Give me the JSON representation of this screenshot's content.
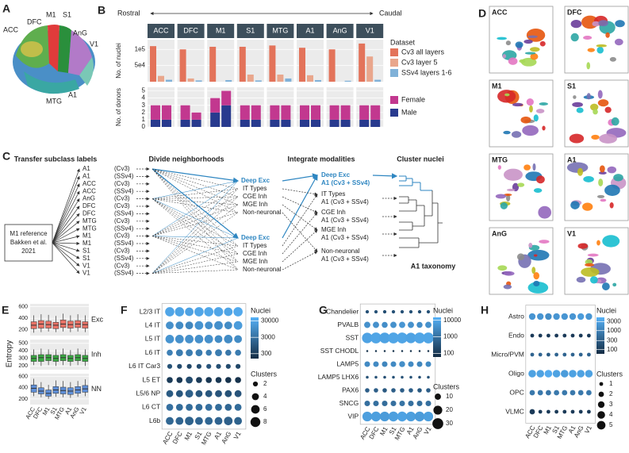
{
  "panels": {
    "a": {
      "letter": "A",
      "regions": [
        "ACC",
        "DFC",
        "M1",
        "S1",
        "AnG",
        "V1",
        "MTG",
        "A1"
      ]
    },
    "b": {
      "letter": "B",
      "rostral": "Rostral",
      "caudal": "Caudal",
      "regions": [
        "ACC",
        "DFC",
        "M1",
        "S1",
        "MTG",
        "A1",
        "AnG",
        "V1"
      ],
      "nuclei": {
        "ylabel": "No. of nuclei",
        "ylim": [
          0,
          130000
        ],
        "yticks": [
          {
            "value": 50000,
            "label": "5e4"
          },
          {
            "value": 100000,
            "label": "1e5"
          }
        ],
        "legend_title": "Dataset",
        "series": [
          {
            "name": "Cv3 all layers",
            "color": "#e3735a",
            "values": [
              110000,
              100000,
              108000,
              108000,
              112000,
              105000,
              100000,
              118000
            ]
          },
          {
            "name": "Cv3 layer 5",
            "color": "#e9a68c",
            "values": [
              18000,
              10000,
              null,
              22000,
              22000,
              20000,
              null,
              78000
            ]
          },
          {
            "name": "SSv4 layers 1-6",
            "color": "#80b1d8",
            "values": [
              6000,
              4000,
              5000,
              4000,
              10000,
              5000,
              3000,
              6000
            ]
          }
        ]
      },
      "donors": {
        "ylabel": "No. of donors",
        "ylim": [
          0,
          5.5
        ],
        "yticks": [
          0,
          1,
          2,
          3,
          4,
          5
        ],
        "series": [
          {
            "name": "Female",
            "color": "#c2388f",
            "values": [
              [
                2,
                2
              ],
              [
                2,
                1
              ],
              [
                2,
                2
              ],
              [
                2,
                2
              ],
              [
                2,
                2
              ],
              [
                2,
                2
              ],
              [
                2,
                2
              ],
              [
                2,
                2
              ]
            ]
          },
          {
            "name": "Male",
            "color": "#283a8e",
            "values": [
              [
                1,
                1
              ],
              [
                1,
                1
              ],
              [
                2,
                3
              ],
              [
                1,
                1
              ],
              [
                1,
                1
              ],
              [
                1,
                1
              ],
              [
                1,
                1
              ],
              [
                1,
                1
              ]
            ]
          }
        ]
      }
    },
    "c": {
      "letter": "C",
      "headers": [
        "Transfer subclass labels",
        "Divide neighborhoods",
        "Integrate modalities",
        "Cluster nuclei"
      ],
      "reference": [
        "M1 reference",
        "Bakken et al.",
        "2021"
      ],
      "regions": [
        "A1",
        "A1",
        "ACC",
        "ACC",
        "AnG",
        "DFC",
        "DFC",
        "MTG",
        "MTG",
        "M1",
        "M1",
        "S1",
        "S1",
        "V1",
        "V1"
      ],
      "platforms": [
        "(Cv3)",
        "(SSv4)",
        "(Cv3)",
        "(SSv4)",
        "(Cv3)",
        "(Cv3)",
        "(SSv4)",
        "(Cv3)",
        "(SSv4)",
        "(Cv3)",
        "(SSv4)",
        "(Cv3)",
        "(SSv4)",
        "(Cv3)",
        "(SSv4)"
      ],
      "neighborhoods": [
        [
          "Deep Exc",
          "IT Types",
          "CGE Inh",
          "MGE Inh",
          "Non-neuronal"
        ],
        [
          "Deep Exc",
          "IT Types",
          "CGE Inh",
          "MGE Inh",
          "Non-neuronal"
        ]
      ],
      "integrated": [
        {
          "label": "Deep Exc",
          "sub": "A1 (Cv3 + SSv4)"
        },
        {
          "label": "IT Types",
          "sub": "A1 (Cv3 + SSv4)"
        },
        {
          "label": "CGE Inh",
          "sub": "A1 (Cv3 + SSv4)"
        },
        {
          "label": "MGE Inh",
          "sub": "A1 (Cv3 + SSv4)"
        },
        {
          "label": "Non-neuronal",
          "sub": "A1 (Cv3 + SSv4)"
        }
      ],
      "taxonomy": "A1 taxonomy"
    },
    "d": {
      "letter": "D",
      "regions": [
        "ACC",
        "DFC",
        "M1",
        "S1",
        "MTG",
        "A1",
        "AnG",
        "V1"
      ]
    },
    "e": {
      "letter": "E",
      "ylabel": "Entropy",
      "categories": [
        "ACC",
        "DFC",
        "M1",
        "S1",
        "MTG",
        "A1",
        "AnG",
        "V1"
      ],
      "rows": [
        {
          "name": "Exc",
          "color": "#ea7367",
          "ylim": [
            100,
            650
          ],
          "yticks": [
            200,
            400,
            600
          ],
          "boxes": [
            [
              150,
              220,
              280,
              340,
              450
            ],
            [
              160,
              230,
              300,
              360,
              470
            ],
            [
              170,
              230,
              290,
              350,
              460
            ],
            [
              160,
              220,
              280,
              330,
              440
            ],
            [
              170,
              240,
              300,
              370,
              480
            ],
            [
              160,
              230,
              290,
              350,
              450
            ],
            [
              170,
              240,
              300,
              360,
              470
            ],
            [
              160,
              230,
              290,
              340,
              450
            ]
          ]
        },
        {
          "name": "Inh",
          "color": "#3aa843",
          "ylim": [
            150,
            550
          ],
          "yticks": [
            200,
            300,
            400,
            500
          ],
          "boxes": [
            [
              210,
              260,
              300,
              340,
              420
            ],
            [
              200,
              260,
              310,
              350,
              430
            ],
            [
              210,
              270,
              310,
              350,
              420
            ],
            [
              200,
              260,
              300,
              340,
              420
            ],
            [
              210,
              270,
              310,
              350,
              430
            ],
            [
              200,
              260,
              300,
              340,
              410
            ],
            [
              210,
              270,
              310,
              350,
              430
            ],
            [
              200,
              260,
              300,
              340,
              420
            ]
          ]
        },
        {
          "name": "NN",
          "color": "#5f8fd8",
          "ylim": [
            100,
            650
          ],
          "yticks": [
            200,
            400,
            600
          ],
          "boxes": [
            [
              250,
              320,
              390,
              450,
              560
            ],
            [
              230,
              290,
              340,
              400,
              500
            ],
            [
              200,
              250,
              300,
              360,
              450
            ],
            [
              240,
              300,
              360,
              420,
              530
            ],
            [
              230,
              290,
              350,
              410,
              520
            ],
            [
              220,
              280,
              340,
              400,
              500
            ],
            [
              240,
              300,
              360,
              420,
              520
            ],
            [
              250,
              320,
              380,
              440,
              550
            ]
          ]
        }
      ]
    },
    "f": {
      "letter": "F",
      "categories": [
        "ACC",
        "DFC",
        "M1",
        "S1",
        "MTG",
        "A1",
        "AnG",
        "V1"
      ],
      "rows": [
        "L2/3 IT",
        "L4 IT",
        "L5 IT",
        "L6 IT",
        "L6 IT Car3",
        "L5 ET",
        "L5/6 NP",
        "L6 CT",
        "L6b"
      ],
      "clusters": [
        [
          7,
          7,
          6,
          7,
          7,
          7,
          6,
          7
        ],
        [
          5,
          5,
          5,
          6,
          5,
          6,
          5,
          6
        ],
        [
          6,
          6,
          6,
          6,
          6,
          5,
          6,
          5
        ],
        [
          3,
          4,
          4,
          4,
          3,
          4,
          3,
          3
        ],
        [
          2,
          2,
          2,
          2,
          2,
          2,
          2,
          2
        ],
        [
          3,
          3,
          4,
          3,
          3,
          3,
          3,
          3
        ],
        [
          4,
          4,
          5,
          4,
          4,
          4,
          4,
          4
        ],
        [
          4,
          4,
          4,
          4,
          4,
          4,
          4,
          4
        ],
        [
          5,
          5,
          6,
          5,
          5,
          5,
          6,
          5
        ]
      ],
      "nuclei": [
        [
          30000,
          28000,
          25000,
          30000,
          32000,
          30000,
          28000,
          35000
        ],
        [
          12000,
          10000,
          8000,
          14000,
          12000,
          12000,
          10000,
          20000
        ],
        [
          14000,
          12000,
          12000,
          12000,
          12000,
          10000,
          10000,
          10000
        ],
        [
          6000,
          5000,
          5000,
          5000,
          5000,
          5000,
          4000,
          5000
        ],
        [
          800,
          600,
          500,
          600,
          900,
          700,
          600,
          500
        ],
        [
          300,
          250,
          600,
          300,
          250,
          250,
          200,
          200
        ],
        [
          1200,
          1000,
          1500,
          1000,
          1000,
          900,
          800,
          900
        ],
        [
          3000,
          2500,
          2500,
          2500,
          3000,
          2500,
          2000,
          2500
        ],
        [
          2000,
          1800,
          1600,
          1800,
          2000,
          1800,
          1500,
          1600
        ]
      ],
      "nuclei_title": "Nuclei",
      "nuclei_lim": [
        150,
        50000
      ],
      "nuclei_ticks": [
        30000,
        3000,
        300
      ],
      "clusters_title": "Clusters",
      "cluster_ticks": [
        2,
        4,
        6,
        8
      ]
    },
    "g": {
      "letter": "G",
      "categories": [
        "ACC",
        "DFC",
        "M1",
        "S1",
        "MTG",
        "A1",
        "AnG",
        "V1"
      ],
      "rows": [
        "Chandelier",
        "PVALB",
        "SST",
        "SST CHODL",
        "LAMP5",
        "LAMP5 LHX6",
        "PAX6",
        "SNCG",
        "VIP"
      ],
      "clusters": [
        [
          3,
          3,
          3,
          3,
          3,
          3,
          3,
          3
        ],
        [
          10,
          10,
          9,
          10,
          10,
          10,
          9,
          10
        ],
        [
          28,
          30,
          29,
          30,
          30,
          28,
          30,
          30
        ],
        [
          1,
          1,
          1,
          1,
          1,
          1,
          1,
          1
        ],
        [
          8,
          8,
          8,
          8,
          9,
          8,
          8,
          8
        ],
        [
          2,
          2,
          2,
          2,
          2,
          2,
          2,
          2
        ],
        [
          5,
          5,
          5,
          5,
          5,
          5,
          5,
          5
        ],
        [
          8,
          8,
          8,
          8,
          8,
          8,
          8,
          8
        ],
        [
          24,
          25,
          24,
          25,
          25,
          24,
          25,
          24
        ]
      ],
      "nuclei": [
        [
          300,
          300,
          250,
          300,
          300,
          300,
          250,
          300
        ],
        [
          4000,
          4000,
          3500,
          4000,
          5000,
          4000,
          3500,
          4000
        ],
        [
          8000,
          9000,
          8000,
          9000,
          9000,
          8000,
          9000,
          9000
        ],
        [
          80,
          80,
          70,
          80,
          80,
          80,
          70,
          80
        ],
        [
          3000,
          3000,
          2500,
          3000,
          3500,
          3000,
          2500,
          3000
        ],
        [
          300,
          300,
          250,
          300,
          300,
          300,
          250,
          300
        ],
        [
          500,
          500,
          400,
          500,
          500,
          500,
          400,
          500
        ],
        [
          1000,
          1000,
          900,
          1000,
          1200,
          1000,
          900,
          1000
        ],
        [
          7000,
          7000,
          6000,
          7000,
          8000,
          7000,
          6000,
          7000
        ]
      ],
      "nuclei_title": "Nuclei",
      "nuclei_lim": [
        60,
        15000
      ],
      "nuclei_ticks": [
        10000,
        1000,
        100
      ],
      "clusters_title": "Clusters",
      "cluster_ticks": [
        10,
        20,
        30
      ]
    },
    "h": {
      "letter": "H",
      "categories": [
        "ACC",
        "DFC",
        "M1",
        "S1",
        "MTG",
        "A1",
        "AnG",
        "V1"
      ],
      "rows": [
        "Astro",
        "Endo",
        "Micro/PVM",
        "Oligo",
        "OPC",
        "VLMC"
      ],
      "clusters": [
        [
          3,
          3,
          3,
          3,
          3,
          3,
          3,
          3
        ],
        [
          1,
          1,
          1,
          1,
          1,
          1,
          1,
          1
        ],
        [
          1,
          1,
          1,
          1,
          1,
          1,
          1,
          1
        ],
        [
          4,
          4,
          4,
          4,
          4,
          4,
          4,
          4
        ],
        [
          2,
          2,
          2,
          2,
          2,
          2,
          2,
          2
        ],
        [
          2,
          1,
          1,
          1,
          1,
          1,
          1,
          1
        ]
      ],
      "nuclei": [
        [
          2000,
          2000,
          1500,
          2000,
          2000,
          2000,
          2500,
          2000
        ],
        [
          100,
          100,
          100,
          100,
          100,
          100,
          100,
          100
        ],
        [
          400,
          400,
          300,
          400,
          400,
          400,
          400,
          400
        ],
        [
          3000,
          3000,
          4000,
          3000,
          2500,
          3000,
          3000,
          3000
        ],
        [
          800,
          800,
          700,
          800,
          800,
          800,
          800,
          800
        ],
        [
          100,
          100,
          100,
          100,
          100,
          100,
          100,
          100
        ]
      ],
      "nuclei_title": "Nuclei",
      "nuclei_lim": [
        60,
        5000
      ],
      "nuclei_ticks": [
        3000,
        1000,
        300,
        100
      ],
      "clusters_title": "Clusters",
      "cluster_ticks": [
        1,
        2,
        3,
        4,
        5
      ]
    }
  }
}
